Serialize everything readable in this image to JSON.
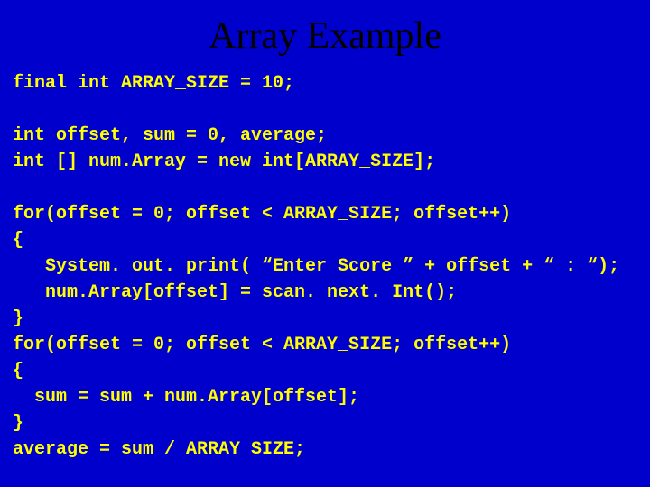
{
  "title": "Array Example",
  "code": {
    "lines": [
      "final int ARRAY_SIZE = 10;",
      "",
      "int offset, sum = 0, average;",
      "int [] num.Array = new int[ARRAY_SIZE];",
      "",
      "for(offset = 0; offset < ARRAY_SIZE; offset++)",
      "{",
      "   System. out. print( “Enter Score ” + offset + “ : “);",
      "   num.Array[offset] = scan. next. Int();",
      "}",
      "for(offset = 0; offset < ARRAY_SIZE; offset++)",
      "{",
      "  sum = sum + num.Array[offset];",
      "}",
      "average = sum / ARRAY_SIZE;"
    ]
  },
  "colors": {
    "background": "#0000cc",
    "title_color": "#000000",
    "code_color": "#ffff00"
  },
  "typography": {
    "title_font": "Times New Roman",
    "title_size_pt": 32,
    "code_font": "Courier New",
    "code_size_pt": 15,
    "code_weight": "bold"
  }
}
